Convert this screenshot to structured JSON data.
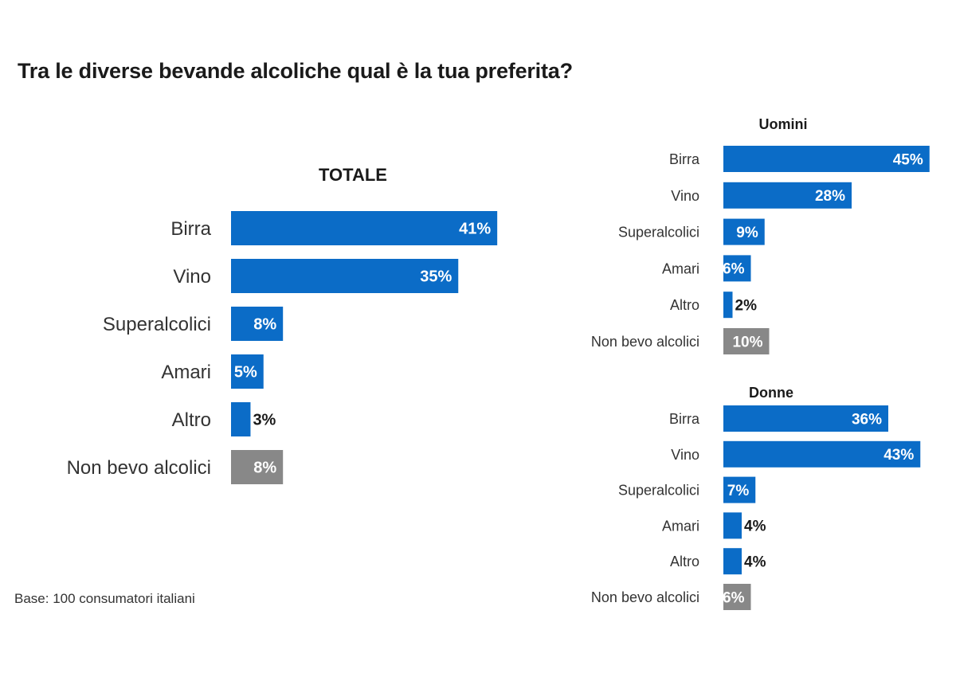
{
  "title": "Tra le diverse bevande alcoliche qual è la tua preferita?",
  "footnote": "Base: 100 consumatori italiani",
  "colors": {
    "bar": "#0b6cc7",
    "non_drinker": "#888888"
  },
  "chart_data": [
    {
      "type": "bar",
      "orientation": "horizontal",
      "title": "TOTALE",
      "categories": [
        "Birra",
        "Vino",
        "Superalcolici",
        "Amari",
        "Altro",
        "Non bevo alcolici"
      ],
      "values": [
        41,
        35,
        8,
        5,
        3,
        8
      ],
      "labels": [
        "41%",
        "35%",
        "8%",
        "5%",
        "3%",
        "8%"
      ]
    },
    {
      "type": "bar",
      "orientation": "horizontal",
      "title": "Uomini",
      "categories": [
        "Birra",
        "Vino",
        "Superalcolici",
        "Amari",
        "Altro",
        "Non bevo alcolici"
      ],
      "values": [
        45,
        28,
        9,
        6,
        2,
        10
      ],
      "labels": [
        "45%",
        "28%",
        "9%",
        "6%",
        "2%",
        "10%"
      ]
    },
    {
      "type": "bar",
      "orientation": "horizontal",
      "title": "Donne",
      "categories": [
        "Birra",
        "Vino",
        "Superalcolici",
        "Amari",
        "Altro",
        "Non bevo alcolici"
      ],
      "values": [
        36,
        43,
        7,
        4,
        4,
        6
      ],
      "labels": [
        "36%",
        "43%",
        "7%",
        "4%",
        "4%",
        "6%"
      ]
    }
  ]
}
